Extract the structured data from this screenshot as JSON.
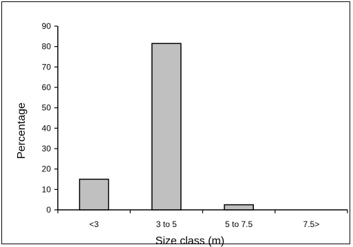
{
  "chart_data": {
    "type": "bar",
    "title": "",
    "xlabel": "Size class (m)",
    "ylabel": "Percentage",
    "categories": [
      "<3",
      "3 to 5",
      "5 to 7.5",
      "7.5>"
    ],
    "values": [
      15,
      81.5,
      2.5,
      0
    ],
    "ylim": [
      0,
      90
    ],
    "yticks": [
      0,
      10,
      20,
      30,
      40,
      50,
      60,
      70,
      80,
      90
    ],
    "grid": false,
    "legend": "none",
    "colors": {
      "bar_fill": "#c0c0c0",
      "bar_stroke": "#000000",
      "axis": "#000000"
    }
  }
}
